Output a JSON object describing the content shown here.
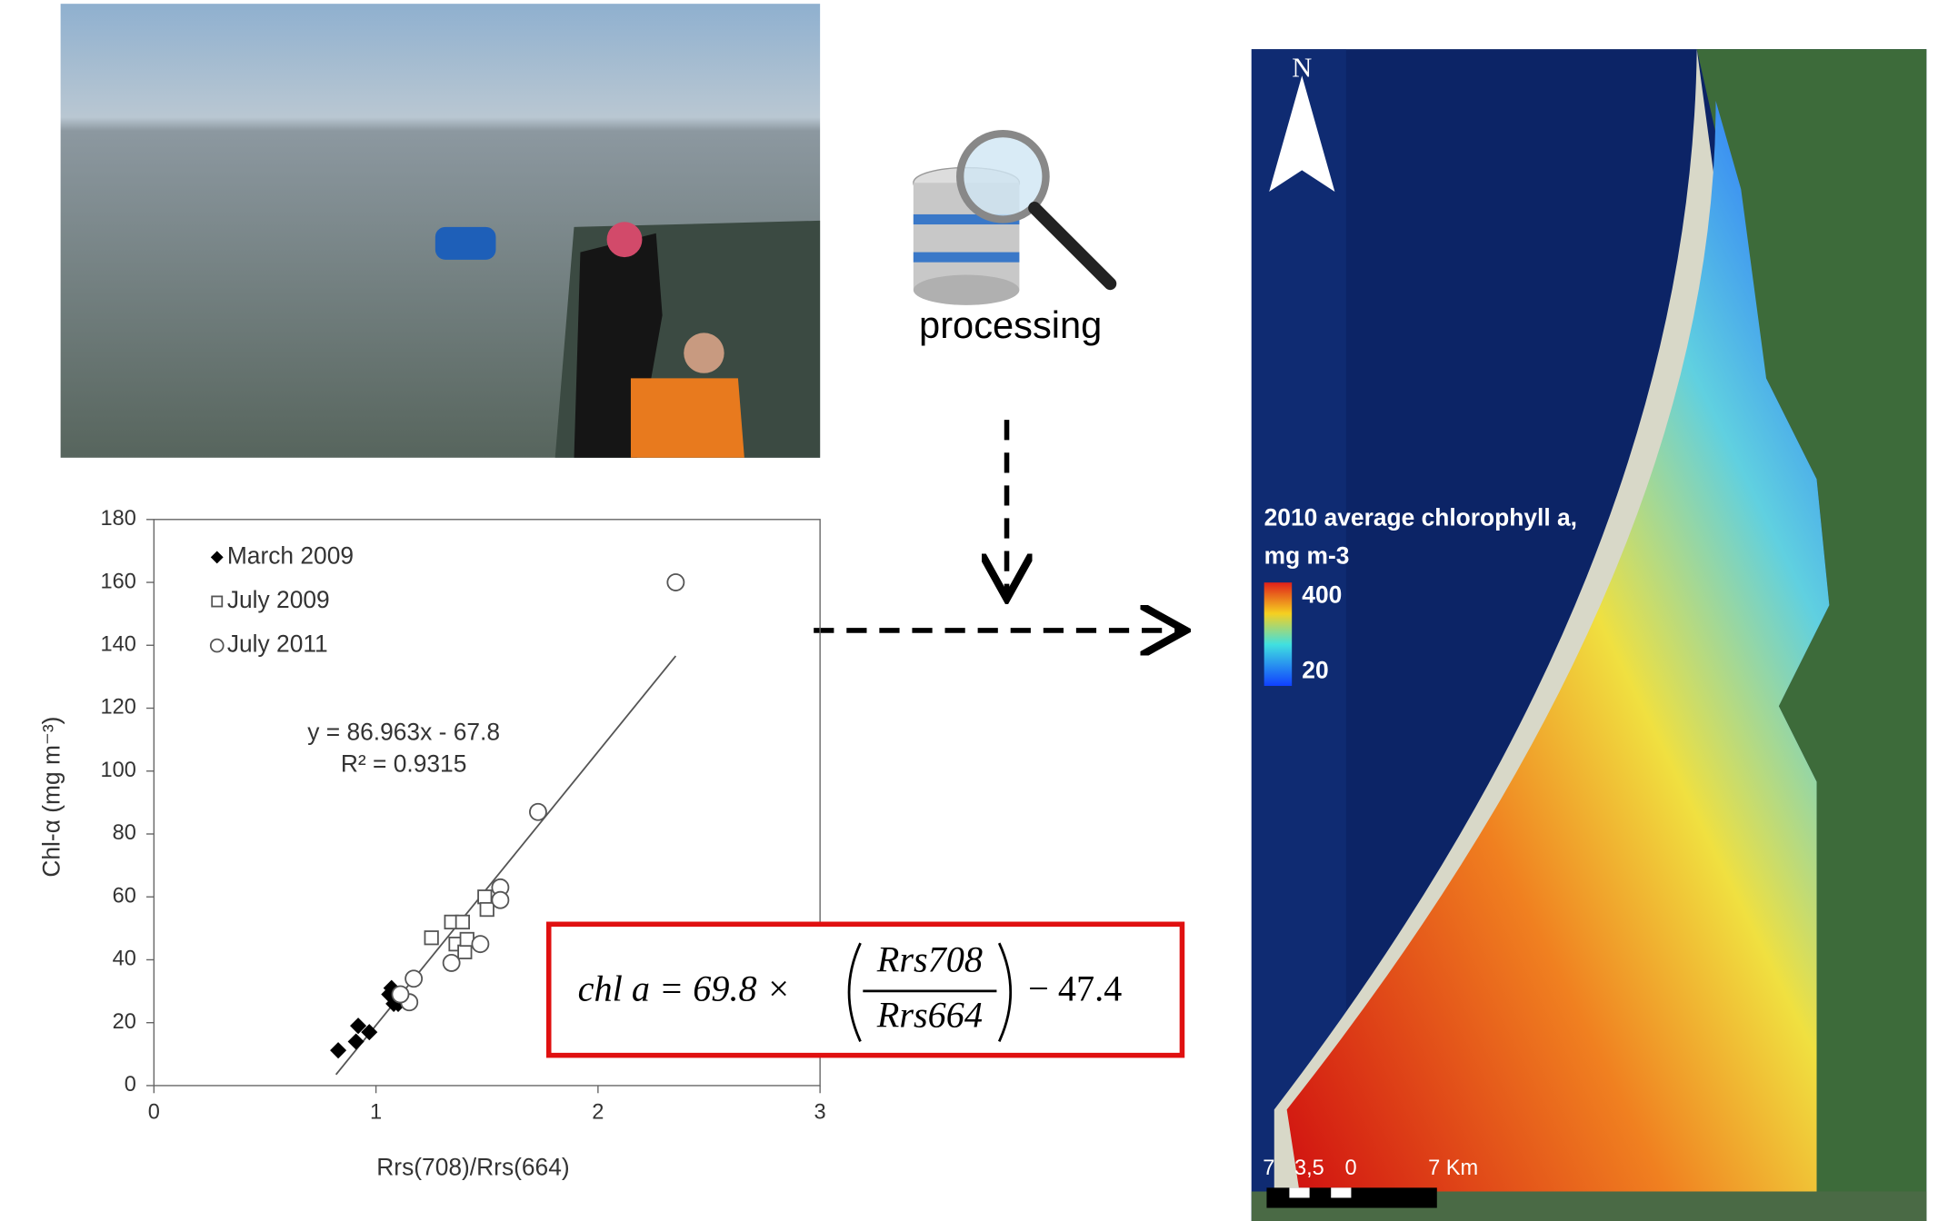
{
  "processing_label": "processing",
  "chart_data": {
    "type": "scatter",
    "xlabel": "Rrs(708)/Rrs(664)",
    "ylabel": "Chl-α (mg m⁻³)",
    "xlim": [
      0,
      3
    ],
    "ylim": [
      0,
      180
    ],
    "xticks": [
      0,
      1,
      2,
      3
    ],
    "yticks": [
      0,
      20,
      40,
      60,
      80,
      100,
      120,
      140,
      160,
      180
    ],
    "series": [
      {
        "name": "March 2009",
        "marker": "diamond",
        "color": "#000000",
        "x": [
          0.83,
          0.92,
          0.91,
          0.97,
          1.06,
          1.08,
          1.1,
          1.07
        ],
        "values": [
          11.2,
          19,
          14,
          17,
          29,
          26,
          26,
          31
        ]
      },
      {
        "name": "July 2009",
        "marker": "square",
        "color": "#555555",
        "x": [
          1.25,
          1.34,
          1.39,
          1.36,
          1.4,
          1.41,
          1.49,
          1.5
        ],
        "values": [
          47,
          52,
          52,
          45,
          42.5,
          46.5,
          60,
          56
        ]
      },
      {
        "name": "July 2011",
        "marker": "circle",
        "color": "#555555",
        "x": [
          2.35,
          1.73,
          1.56,
          1.56,
          1.47,
          1.34,
          1.17,
          1.15,
          1.11
        ],
        "values": [
          160,
          87,
          63,
          59,
          45,
          39,
          34,
          26.5,
          29
        ]
      }
    ],
    "trendline": {
      "x": [
        0.82,
        2.35
      ],
      "values": [
        3.5,
        136.6
      ]
    },
    "equation": "y = 86.963x - 67.8",
    "r_squared": "R² = 0.9315"
  },
  "formula": {
    "left": "chl a = 69.8 ×",
    "numerator": "Rrs708",
    "denominator": "Rrs664",
    "right": "− 47.4"
  },
  "map": {
    "north": "N",
    "legend_title": "2010 average chlorophyll a,",
    "legend_unit": "mg m-3",
    "legend_max": "400",
    "legend_min": "20",
    "scale_labels": [
      "7",
      "3,5",
      "0",
      "7 Km"
    ]
  }
}
